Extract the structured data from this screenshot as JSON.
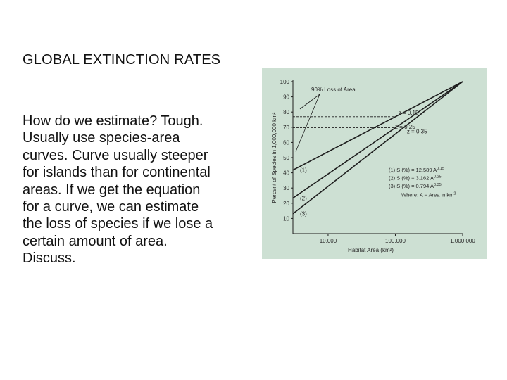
{
  "slide": {
    "title": "GLOBAL EXTINCTION RATES",
    "body_lines": [
      "How do we estimate?  Tough.",
      "Usually use species-area",
      "curves. Curve usually steeper",
      "for islands than for continental",
      "areas.  If we get the equation",
      "for a curve, we can estimate",
      "the loss of species if we lose a",
      "certain amount of area.",
      "Discuss."
    ]
  },
  "chart_data": {
    "type": "line",
    "xlabel": "Habitat Area (km²)",
    "ylabel": "Percent of Species in 1,000,000 km²",
    "x_scale": "log",
    "xlim": [
      3000,
      1000000
    ],
    "ylim": [
      0,
      100
    ],
    "x_ticks": [
      "10,000",
      "100,000",
      "1,000,000"
    ],
    "y_ticks": [
      "10",
      "20",
      "30",
      "40",
      "50",
      "60",
      "70",
      "80",
      "90",
      "100"
    ],
    "grid": false,
    "background_color": "#cde0d3",
    "annotation": "90% Loss of Area",
    "series": [
      {
        "name": "z = 0.15",
        "label": "(1)",
        "x": [
          3000,
          1000000
        ],
        "y": [
          41.8,
          100
        ]
      },
      {
        "name": "z = 0.25",
        "label": "(2)",
        "x": [
          3000,
          1000000
        ],
        "y": [
          23.4,
          100
        ]
      },
      {
        "name": "z = 0.35",
        "label": "(3)",
        "x": [
          3000,
          1000000
        ],
        "y": [
          13.1,
          100
        ]
      }
    ],
    "equations": {
      "lines": [
        {
          "num": "(1)",
          "lhs": "S (%) = 12.589 A",
          "exp": "0.15"
        },
        {
          "num": "(2)",
          "lhs": "S (%) =   3.162 A",
          "exp": "0.25"
        },
        {
          "num": "(3)",
          "lhs": "S (%) =   0.794 A",
          "exp": "0.35"
        }
      ],
      "where_text": "Where: A = Area in km",
      "where_exp": "2"
    },
    "colors": {
      "line": "#1e1e1e",
      "text": "#2a2a2a"
    }
  }
}
